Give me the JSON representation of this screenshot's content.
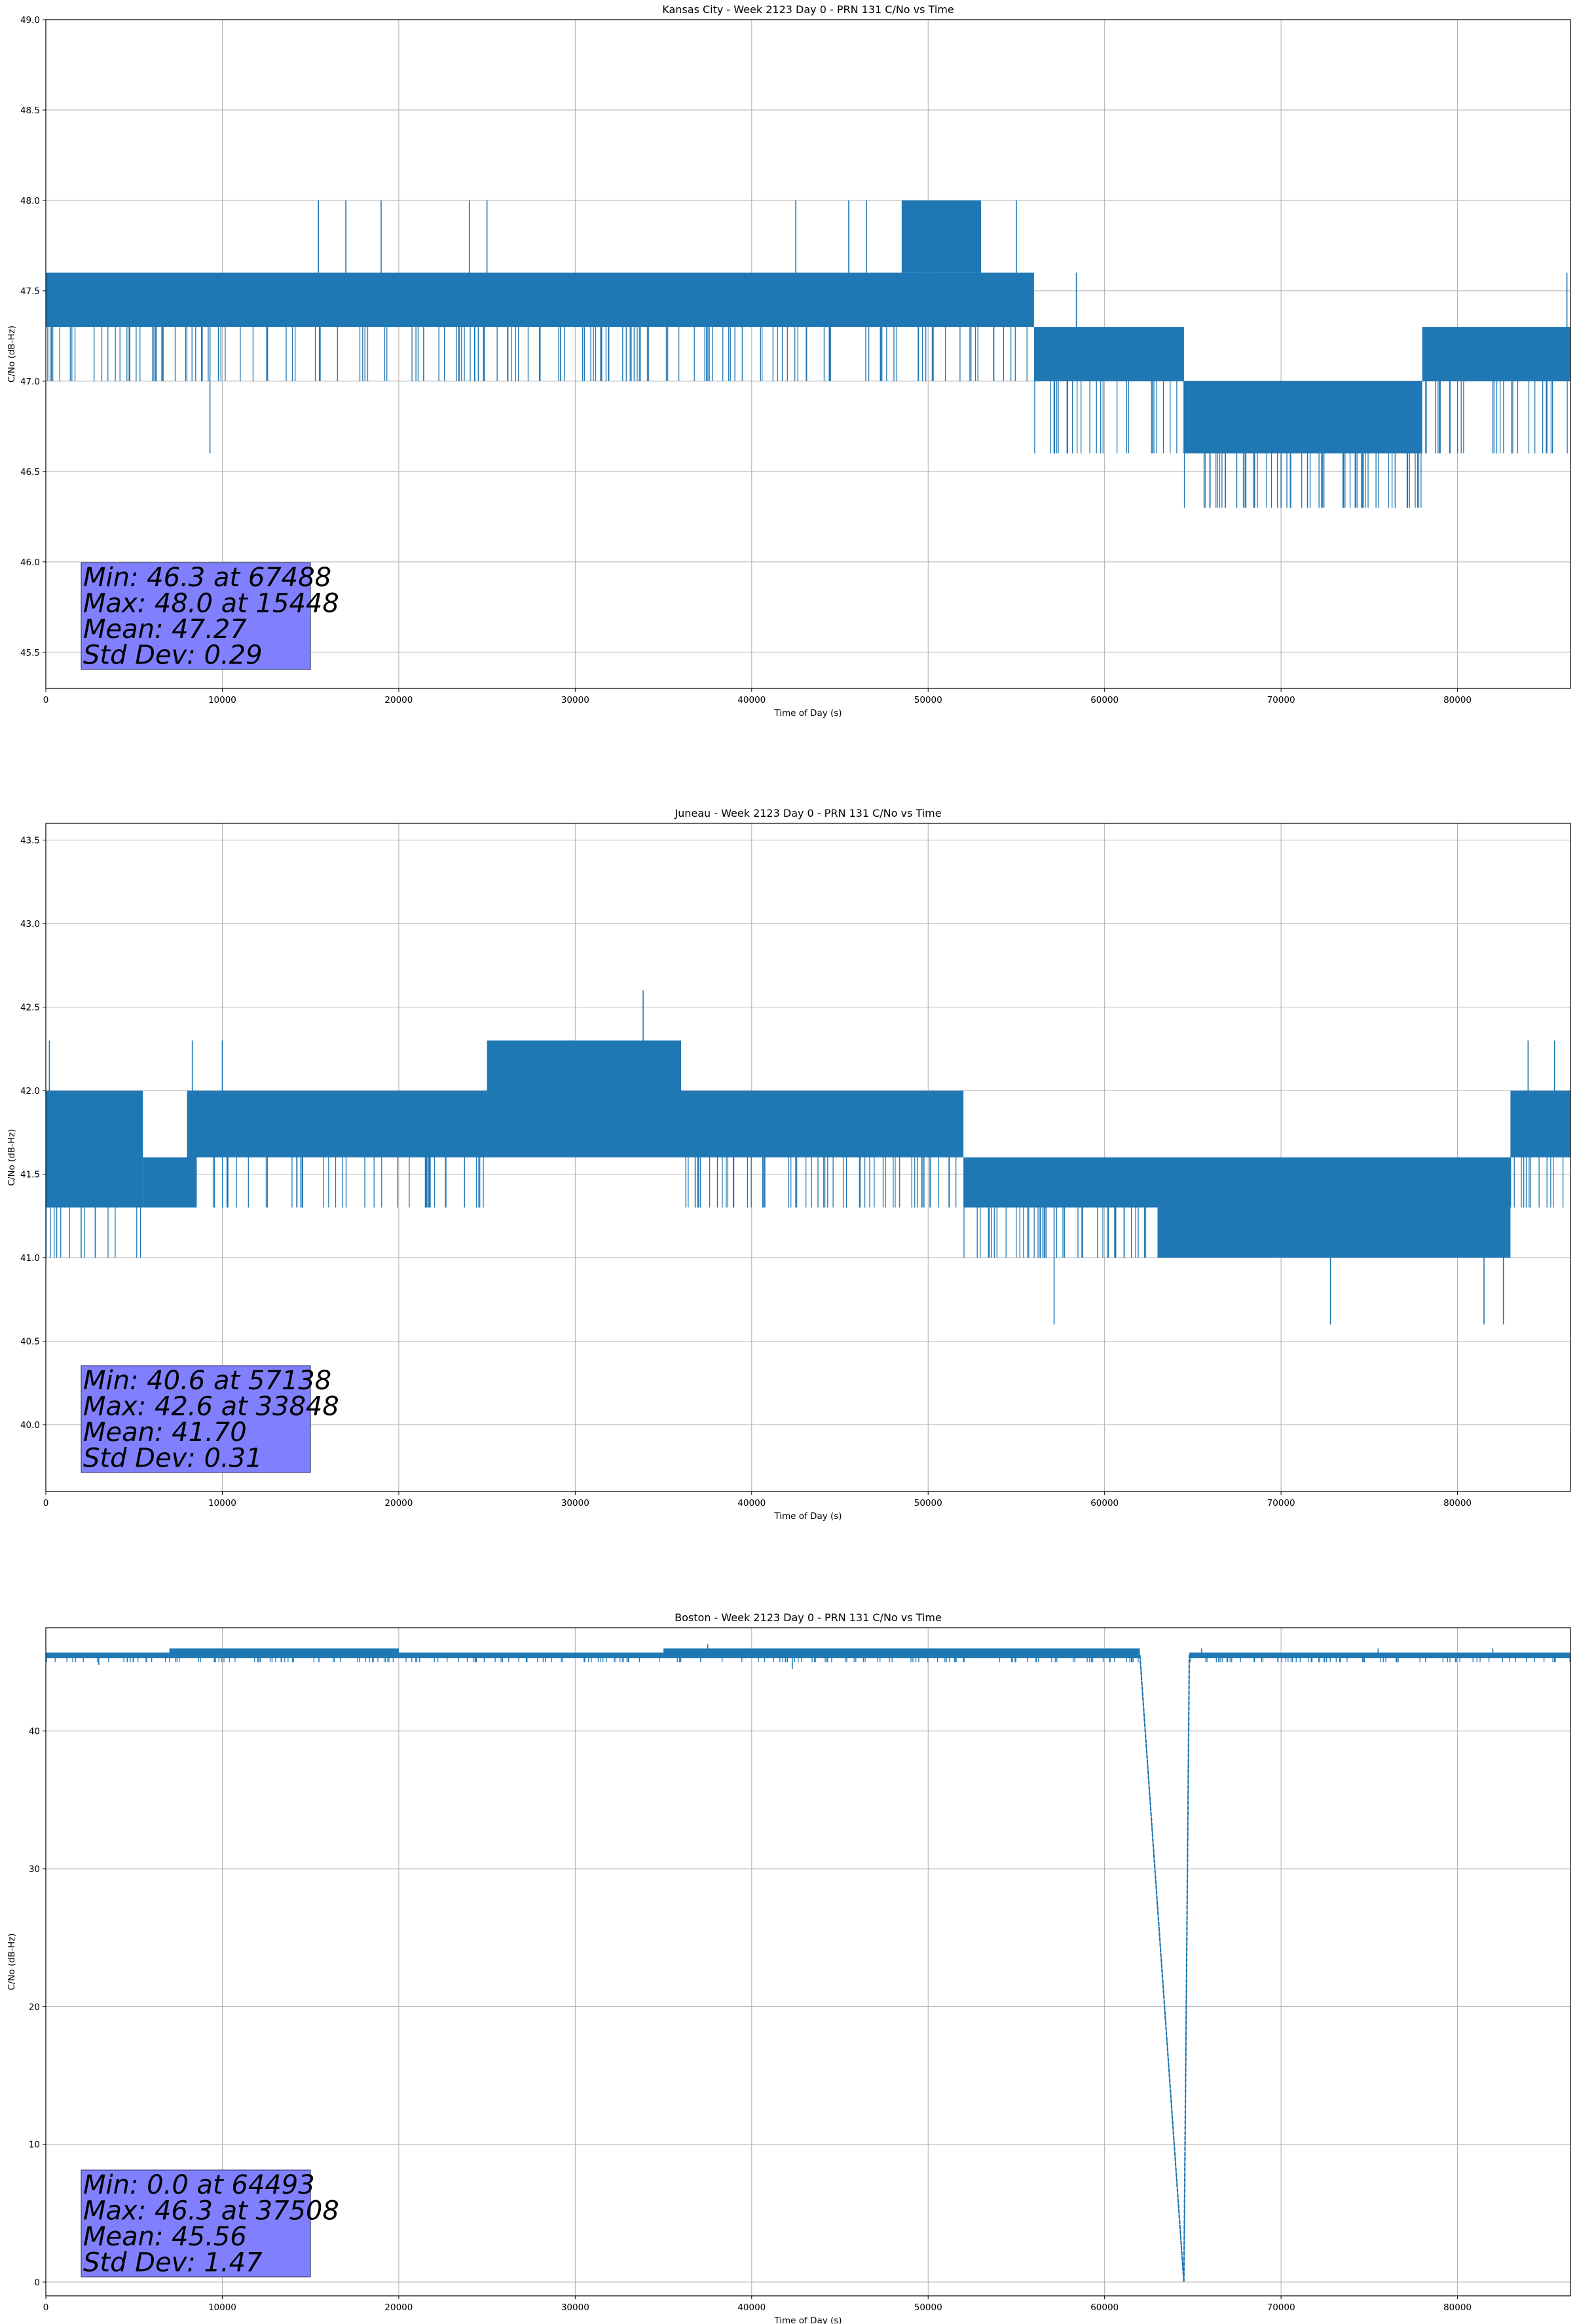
{
  "colors": {
    "series": "#1f77b4",
    "grid": "#b0b0b0",
    "stats_box": "#8080ff",
    "stats_box_border": "#3f3f7f"
  },
  "chart_data": [
    {
      "type": "line",
      "title": "Kansas City - Week 2123 Day 0 - PRN 131 C/No vs Time",
      "xlabel": "Time of Day (s)",
      "ylabel": "C/No (dB-Hz)",
      "xlim": [
        0,
        86400
      ],
      "ylim": [
        45.3,
        49.0
      ],
      "grid": true,
      "xticks": [
        0,
        10000,
        20000,
        30000,
        40000,
        50000,
        60000,
        70000,
        80000
      ],
      "yticks": [
        45.5,
        46.0,
        46.5,
        47.0,
        47.5,
        48.0,
        48.5,
        49.0
      ],
      "ydecimals": 1,
      "series": [
        {
          "name": "C/No",
          "segments": [
            {
              "x_start": 0,
              "x_end": 56000,
              "low": 47.3,
              "high": 47.6,
              "dips_to": 47.0
            },
            {
              "x_start": 48500,
              "x_end": 53000,
              "low": 47.6,
              "high": 48.0,
              "dips_to": 47.6
            },
            {
              "x_start": 56000,
              "x_end": 64500,
              "low": 47.0,
              "high": 47.3,
              "dips_to": 46.6
            },
            {
              "x_start": 64500,
              "x_end": 78000,
              "low": 46.6,
              "high": 47.0,
              "dips_to": 46.3
            },
            {
              "x_start": 78000,
              "x_end": 86400,
              "low": 47.0,
              "high": 47.3,
              "dips_to": 46.6
            }
          ],
          "spikes": [
            {
              "x": 9300,
              "y": 46.6
            },
            {
              "x": 15448,
              "y": 48.0
            },
            {
              "x": 17000,
              "y": 48.0
            },
            {
              "x": 19000,
              "y": 48.0
            },
            {
              "x": 24000,
              "y": 48.0
            },
            {
              "x": 25000,
              "y": 48.0
            },
            {
              "x": 42500,
              "y": 48.0
            },
            {
              "x": 45500,
              "y": 48.0
            },
            {
              "x": 46500,
              "y": 48.0
            },
            {
              "x": 55000,
              "y": 48.0
            },
            {
              "x": 58400,
              "y": 47.6
            },
            {
              "x": 67488,
              "y": 46.3
            },
            {
              "x": 68500,
              "y": 46.3
            },
            {
              "x": 70000,
              "y": 46.3
            },
            {
              "x": 71500,
              "y": 46.3
            },
            {
              "x": 72300,
              "y": 46.3
            },
            {
              "x": 86200,
              "y": 47.6
            }
          ]
        }
      ],
      "stats": [
        "Min: 46.3 at 67488",
        "Max: 48.0 at 15448",
        "Mean: 47.27",
        "Std Dev: 0.29"
      ]
    },
    {
      "type": "line",
      "title": "Juneau - Week 2123 Day 0 - PRN 131 C/No vs Time",
      "xlabel": "Time of Day (s)",
      "ylabel": "C/No (dB-Hz)",
      "xlim": [
        0,
        86400
      ],
      "ylim": [
        39.6,
        43.6
      ],
      "grid": true,
      "xticks": [
        0,
        10000,
        20000,
        30000,
        40000,
        50000,
        60000,
        70000,
        80000
      ],
      "yticks": [
        40.0,
        40.5,
        41.0,
        41.5,
        42.0,
        42.5,
        43.0,
        43.5
      ],
      "ydecimals": 1,
      "series": [
        {
          "name": "C/No",
          "segments": [
            {
              "x_start": 0,
              "x_end": 5500,
              "low": 41.3,
              "high": 42.0,
              "dips_to": 41.0
            },
            {
              "x_start": 5500,
              "x_end": 8500,
              "low": 41.3,
              "high": 41.6,
              "dips_to": 41.3
            },
            {
              "x_start": 8000,
              "x_end": 25000,
              "low": 41.6,
              "high": 42.0,
              "dips_to": 41.3
            },
            {
              "x_start": 25000,
              "x_end": 36000,
              "low": 41.6,
              "high": 42.3,
              "dips_to": 41.6
            },
            {
              "x_start": 36000,
              "x_end": 52000,
              "low": 41.6,
              "high": 42.0,
              "dips_to": 41.3
            },
            {
              "x_start": 52000,
              "x_end": 63000,
              "low": 41.3,
              "high": 41.6,
              "dips_to": 41.0
            },
            {
              "x_start": 63000,
              "x_end": 83000,
              "low": 41.0,
              "high": 41.6,
              "dips_to": 41.0
            },
            {
              "x_start": 83000,
              "x_end": 86400,
              "low": 41.6,
              "high": 42.0,
              "dips_to": 41.3
            }
          ],
          "spikes": [
            {
              "x": 200,
              "y": 42.3
            },
            {
              "x": 2000,
              "y": 41.0
            },
            {
              "x": 2800,
              "y": 41.0
            },
            {
              "x": 8300,
              "y": 42.3
            },
            {
              "x": 10000,
              "y": 42.3
            },
            {
              "x": 33848,
              "y": 42.6
            },
            {
              "x": 36800,
              "y": 41.3
            },
            {
              "x": 57138,
              "y": 40.6
            },
            {
              "x": 72800,
              "y": 40.6
            },
            {
              "x": 81500,
              "y": 40.6
            },
            {
              "x": 82600,
              "y": 40.6
            },
            {
              "x": 84000,
              "y": 42.3
            },
            {
              "x": 85500,
              "y": 42.3
            }
          ]
        }
      ],
      "stats": [
        "Min: 40.6 at 57138",
        "Max: 42.6 at 33848",
        "Mean: 41.70",
        "Std Dev: 0.31"
      ]
    },
    {
      "type": "line",
      "title": "Boston - Week 2123 Day 0 - PRN 131 C/No vs Time",
      "xlabel": "Time of Day (s)",
      "ylabel": "C/No (dB-Hz)",
      "xlim": [
        0,
        86400
      ],
      "ylim": [
        -1,
        47.5
      ],
      "grid": true,
      "xticks": [
        0,
        10000,
        20000,
        30000,
        40000,
        50000,
        60000,
        70000,
        80000
      ],
      "yticks": [
        0,
        10,
        20,
        30,
        40
      ],
      "ydecimals": 0,
      "series": [
        {
          "name": "C/No",
          "segments": [
            {
              "x_start": 0,
              "x_end": 7000,
              "low": 45.3,
              "high": 45.7,
              "dips_to": 45.0
            },
            {
              "x_start": 7000,
              "x_end": 20000,
              "low": 45.3,
              "high": 46.0,
              "dips_to": 45.0
            },
            {
              "x_start": 20000,
              "x_end": 35000,
              "low": 45.3,
              "high": 45.7,
              "dips_to": 45.0
            },
            {
              "x_start": 35000,
              "x_end": 62000,
              "low": 45.3,
              "high": 46.0,
              "dips_to": 45.0
            },
            {
              "x_start": 64800,
              "x_end": 86400,
              "low": 45.3,
              "high": 45.7,
              "dips_to": 45.0
            }
          ],
          "spikes": [
            {
              "x": 37508,
              "y": 46.3
            },
            {
              "x": 42300,
              "y": 44.5
            },
            {
              "x": 3000,
              "y": 44.8
            },
            {
              "x": 65500,
              "y": 46.0
            },
            {
              "x": 75500,
              "y": 46.0
            },
            {
              "x": 82000,
              "y": 46.0
            }
          ],
          "dropout": [
            {
              "x": 62000,
              "y": 45.5
            },
            {
              "x": 64493,
              "y": 0.0
            },
            {
              "x": 64800,
              "y": 45.5
            }
          ]
        }
      ],
      "stats": [
        "Min: 0.0 at 64493",
        "Max: 46.3 at 37508",
        "Mean: 45.56",
        "Std Dev: 1.47"
      ]
    }
  ]
}
